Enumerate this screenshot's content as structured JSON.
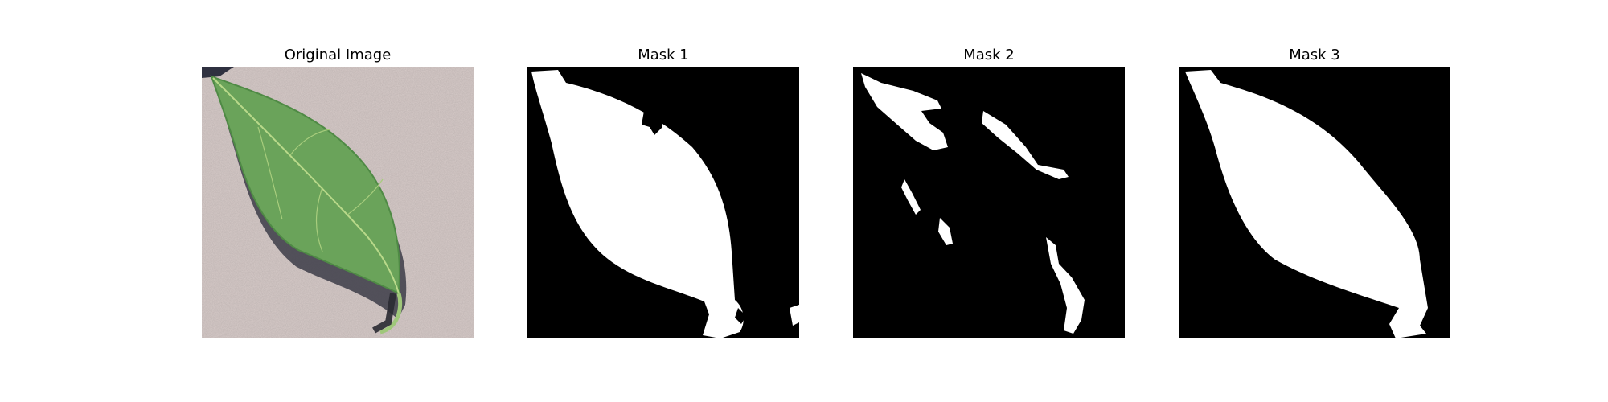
{
  "panels": [
    {
      "title": "Original Image",
      "kind": "photo",
      "subject": "leaf-photo"
    },
    {
      "title": "Mask 1",
      "kind": "mask",
      "subject": "leaf-mask"
    },
    {
      "title": "Mask 2",
      "kind": "mask",
      "subject": "leaf-edge-mask"
    },
    {
      "title": "Mask 3",
      "kind": "mask",
      "subject": "leaf-mask"
    }
  ],
  "colors": {
    "background": "#d7cbc9",
    "leaf": "#6aa35a",
    "leaf_dark": "#4f8a45",
    "vein": "#b9d98a",
    "shadow": "#3c3c48",
    "mask_bg": "#000000",
    "mask_fg": "#ffffff"
  }
}
